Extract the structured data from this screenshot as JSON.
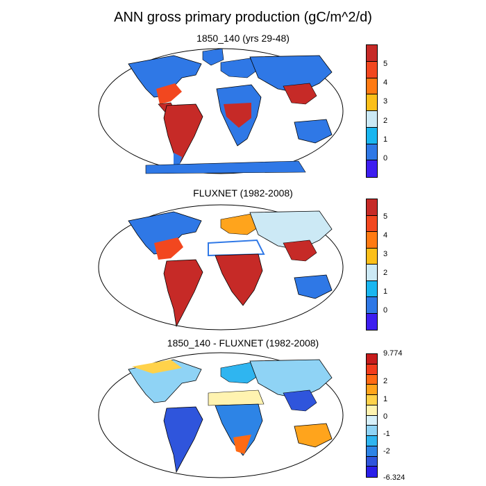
{
  "title": "ANN gross primary production (gC/m^2/d)",
  "panels": [
    {
      "subtitle": "1850_140 (yrs 29-48)",
      "colorbar": {
        "colors": [
          "#c62a27",
          "#f2471f",
          "#ff7a12",
          "#fbbf1a",
          "#cce9f5",
          "#1ab6f0",
          "#2f78e6",
          "#3d1ef0"
        ],
        "labels": [
          "5",
          "4",
          "3",
          "2",
          "1",
          "0"
        ]
      }
    },
    {
      "subtitle": "FLUXNET (1982-2008)",
      "colorbar": {
        "colors": [
          "#c62a27",
          "#f2471f",
          "#ff7a12",
          "#fbbf1a",
          "#cce9f5",
          "#1ab6f0",
          "#2f78e6",
          "#3d1ef0"
        ],
        "labels": [
          "5",
          "4",
          "3",
          "2",
          "1",
          "0"
        ]
      }
    },
    {
      "subtitle": "1850_140 - FLUXNET (1982-2008)",
      "colorbar": {
        "colors": [
          "#c71c1c",
          "#f23c1c",
          "#ff6a14",
          "#ffa41c",
          "#ffd24a",
          "#fff3b0",
          "#d7f0fa",
          "#8fd3f5",
          "#2fb5f0",
          "#2d84e6",
          "#2f55dc",
          "#2a1fe8"
        ],
        "labels": [
          "9.774",
          "2",
          "1",
          "0",
          "-1",
          "-2",
          "-6.324"
        ]
      }
    }
  ]
}
